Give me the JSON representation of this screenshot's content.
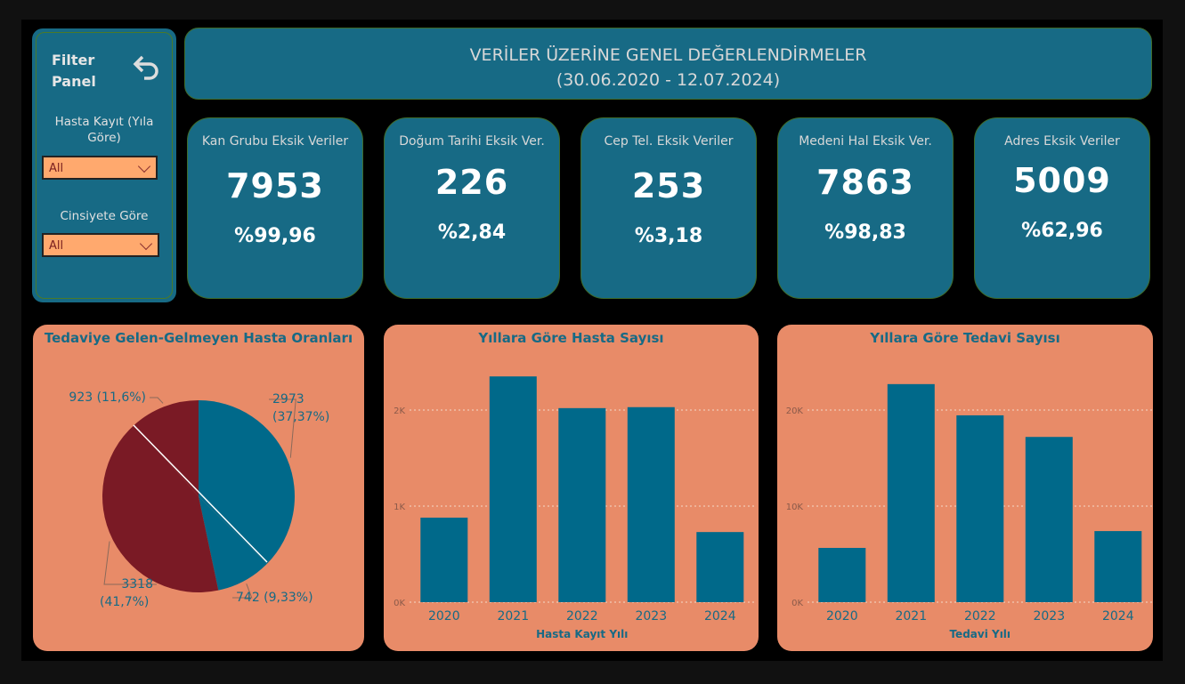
{
  "colors": {
    "teal": "#176a85",
    "bar": "#00698a",
    "pie_red": "#7a1a25",
    "card_bg": "#e88b68",
    "dropdown": "#ffa96e"
  },
  "filter_panel": {
    "title_line1": "Filter",
    "title_line2": "Panel",
    "reset_icon": "undo-arrow-icon",
    "filters": [
      {
        "label": "Hasta Kayıt (Yıla Göre)",
        "value": "All"
      },
      {
        "label": "Cinsiyete Göre",
        "value": "All"
      }
    ]
  },
  "header": {
    "title": "VERİLER ÜZERİNE GENEL DEĞERLENDİRMELER",
    "subtitle": "(30.06.2020 - 12.07.2024)"
  },
  "kpis": [
    {
      "title": "Kan Grubu Eksik Veriler",
      "value": "7953",
      "percent": "%99,96"
    },
    {
      "title": "Doğum Tarihi Eksik Ver.",
      "value": "226",
      "percent": "%2,84"
    },
    {
      "title": "Cep Tel. Eksik Veriler",
      "value": "253",
      "percent": "%3,18"
    },
    {
      "title": "Medeni Hal Eksik Ver.",
      "value": "7863",
      "percent": "%98,83"
    },
    {
      "title": "Adres Eksik Veriler",
      "value": "5009",
      "percent": "%62,96"
    }
  ],
  "chart_data": [
    {
      "type": "pie",
      "title": "Tedaviye Gelen-Gelmeyen Hasta Oranları",
      "slices": [
        {
          "value": 2973,
          "label": "2973 (37,37%)",
          "color": "#00698a"
        },
        {
          "value": 742,
          "label": "742 (9,33%)",
          "color": "#00698a"
        },
        {
          "value": 3318,
          "label": "3318 (41,7%)",
          "color": "#7a1a25"
        },
        {
          "value": 923,
          "label": "923 (11,6%)",
          "color": "#7a1a25"
        }
      ]
    },
    {
      "type": "bar",
      "title": "Yıllara Göre Hasta Sayısı",
      "xlabel": "Hasta Kayıt Yılı",
      "ylabel": "",
      "categories": [
        "2020",
        "2021",
        "2022",
        "2023",
        "2024"
      ],
      "values": [
        880,
        2350,
        2020,
        2030,
        730
      ],
      "ylim": [
        0,
        2000
      ],
      "yticks": [
        0,
        1000,
        2000
      ],
      "ytick_labels": [
        "0K",
        "1K",
        "2K"
      ],
      "grid": true
    },
    {
      "type": "bar",
      "title": "Yıllara Göre Tedavi Sayısı",
      "xlabel": "Tedavi Yılı",
      "ylabel": "",
      "categories": [
        "2020",
        "2021",
        "2022",
        "2023",
        "2024"
      ],
      "values": [
        5650,
        22700,
        19450,
        17200,
        7400
      ],
      "ylim": [
        0,
        20000
      ],
      "yticks": [
        0,
        10000,
        20000
      ],
      "ytick_labels": [
        "0K",
        "10K",
        "20K"
      ],
      "grid": true
    }
  ]
}
